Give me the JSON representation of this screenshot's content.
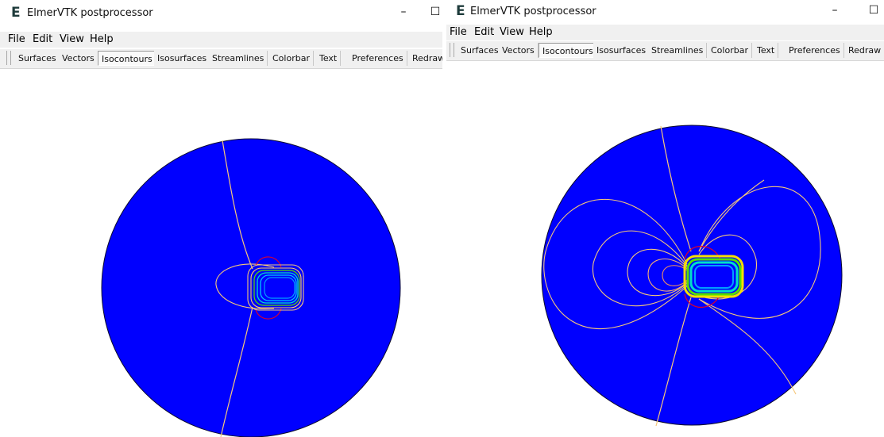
{
  "app": {
    "title": "ElmerVTK postprocessor",
    "logo_letter": "E"
  },
  "window_controls": {
    "minimize": "–",
    "maximize": "☐"
  },
  "menu": [
    "File",
    "Edit",
    "View",
    "Help"
  ],
  "toolbar": {
    "buttons": [
      "Surfaces",
      "Vectors",
      "Isocontours",
      "Isosurfaces",
      "Streamlines",
      "Colorbar",
      "Text",
      "Preferences",
      "Redraw"
    ],
    "active": "Isocontours"
  },
  "colors": {
    "domain_fill": "#0000ff",
    "domain_outline": "#0a0a2a",
    "contour_low": "#f5c77a",
    "contour_high": "#e0002a",
    "contour_mid": "#00e0c8",
    "contour_green": "#55e000"
  },
  "icons": {
    "grip": "toolbar-grip-icon"
  }
}
